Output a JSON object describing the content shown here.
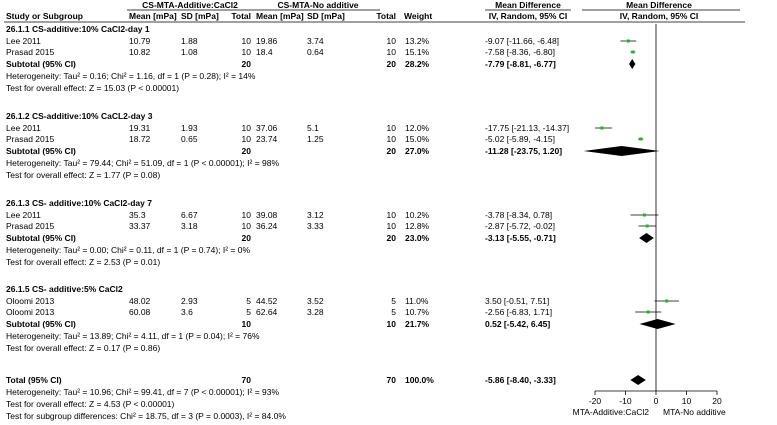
{
  "header": {
    "exp_group": "CS-MTA-Additive:CaCl2",
    "ctl_group": "CS-MTA-No additive",
    "md_heading_1": "Mean Difference",
    "md_heading_2": "Mean Difference",
    "study_or_subgroup": "Study or Subgroup",
    "mean_exp": "Mean [mPa]",
    "sd_exp": "SD [mPa]",
    "total_exp": "Total",
    "mean_ctl": "Mean [mPa]",
    "sd_ctl": "SD [mPa]",
    "total_ctl": "Total",
    "weight": "Weight",
    "ci_col_1": "IV, Random, 95% CI",
    "ci_col_2": "IV, Random, 95% CI"
  },
  "chart_data": {
    "type": "forest",
    "x_axis": {
      "ticks": [
        -20,
        -10,
        0,
        10,
        20
      ],
      "tick_labels": [
        "-20",
        "-10",
        "0",
        "10",
        "20"
      ],
      "range": [
        -20,
        20
      ],
      "left_label": "MTA-Additive:CaCl2",
      "right_label": "MTA-No additive"
    },
    "subgroups": [
      {
        "title": "26.1.1 CS-additive:10% CaCl2-day 1",
        "studies": [
          {
            "name": "Lee 2011",
            "mean_exp": "10.79",
            "sd_exp": "1.88",
            "n_exp": "10",
            "mean_ctl": "19.86",
            "sd_ctl": "3.74",
            "n_ctl": "10",
            "weight": "13.2%",
            "ci_text": "-9.07 [-11.66, -6.48]",
            "md": -9.07,
            "lo": -11.66,
            "hi": -6.48
          },
          {
            "name": "Prasad 2015",
            "mean_exp": "10.82",
            "sd_exp": "1.08",
            "n_exp": "10",
            "mean_ctl": "18.4",
            "sd_ctl": "0.64",
            "n_ctl": "10",
            "weight": "15.1%",
            "ci_text": "-7.58 [-8.36, -6.80]",
            "md": -7.58,
            "lo": -8.36,
            "hi": -6.8
          }
        ],
        "subtotal": {
          "label": "Subtotal (95% CI)",
          "n_exp": "20",
          "n_ctl": "20",
          "weight": "28.2%",
          "ci_text": "-7.79 [-8.81, -6.77]",
          "md": -7.79,
          "lo": -8.81,
          "hi": -6.77
        },
        "heterogeneity": "Heterogeneity: Tau² = 0.16; Chi² = 1.16, df = 1 (P = 0.28); I² = 14%",
        "overall_test": "Test for overall effect: Z = 15.03 (P < 0.00001)"
      },
      {
        "title": "26.1.2 CS-additive:10% CaCL2-day 3",
        "studies": [
          {
            "name": "Lee 2011",
            "mean_exp": "19.31",
            "sd_exp": "1.93",
            "n_exp": "10",
            "mean_ctl": "37.06",
            "sd_ctl": "5.1",
            "n_ctl": "10",
            "weight": "12.0%",
            "ci_text": "-17.75 [-21.13, -14.37]",
            "md": -17.75,
            "lo": -21.13,
            "hi": -14.37
          },
          {
            "name": "Prasad 2015",
            "mean_exp": "18.72",
            "sd_exp": "0.65",
            "n_exp": "10",
            "mean_ctl": "23.74",
            "sd_ctl": "1.25",
            "n_ctl": "10",
            "weight": "15.0%",
            "ci_text": "-5.02 [-5.89, -4.15]",
            "md": -5.02,
            "lo": -5.89,
            "hi": -4.15
          }
        ],
        "subtotal": {
          "label": "Subtotal (95% CI)",
          "n_exp": "20",
          "n_ctl": "20",
          "weight": "27.0%",
          "ci_text": "-11.28 [-23.75, 1.20]",
          "md": -11.28,
          "lo": -23.75,
          "hi": 1.2
        },
        "heterogeneity": "Heterogeneity: Tau² = 79.44; Chi² = 51.09, df = 1 (P < 0.00001); I² = 98%",
        "overall_test": "Test for overall effect: Z = 1.77 (P = 0.08)"
      },
      {
        "title": "26.1.3 CS- additive:10% CaCl2-day 7",
        "studies": [
          {
            "name": "Lee 2011",
            "mean_exp": "35.3",
            "sd_exp": "6.67",
            "n_exp": "10",
            "mean_ctl": "39.08",
            "sd_ctl": "3.12",
            "n_ctl": "10",
            "weight": "10.2%",
            "ci_text": "-3.78 [-8.34, 0.78]",
            "md": -3.78,
            "lo": -8.34,
            "hi": 0.78
          },
          {
            "name": "Prasad 2015",
            "mean_exp": "33.37",
            "sd_exp": "3.18",
            "n_exp": "10",
            "mean_ctl": "36.24",
            "sd_ctl": "3.33",
            "n_ctl": "10",
            "weight": "12.8%",
            "ci_text": "-2.87 [-5.72, -0.02]",
            "md": -2.87,
            "lo": -5.72,
            "hi": -0.02
          }
        ],
        "subtotal": {
          "label": "Subtotal (95% CI)",
          "n_exp": "20",
          "n_ctl": "20",
          "weight": "23.0%",
          "ci_text": "-3.13 [-5.55, -0.71]",
          "md": -3.13,
          "lo": -5.55,
          "hi": -0.71
        },
        "heterogeneity": "Heterogeneity: Tau² = 0.00; Chi² = 0.11, df = 1 (P = 0.74); I² = 0%",
        "overall_test": "Test for overall effect: Z = 2.53 (P = 0.01)"
      },
      {
        "title": "26.1.5 CS- additive:5% CaCl2",
        "studies": [
          {
            "name": "Oloomi 2013",
            "mean_exp": "48.02",
            "sd_exp": "2.93",
            "n_exp": "5",
            "mean_ctl": "44.52",
            "sd_ctl": "3.52",
            "n_ctl": "5",
            "weight": "11.0%",
            "ci_text": "3.50 [-0.51, 7.51]",
            "md": 3.5,
            "lo": -0.51,
            "hi": 7.51
          },
          {
            "name": "Oloomi 2013",
            "mean_exp": "60.08",
            "sd_exp": "3.6",
            "n_exp": "5",
            "mean_ctl": "62.64",
            "sd_ctl": "3.28",
            "n_ctl": "5",
            "weight": "10.7%",
            "ci_text": "-2.56 [-6.83, 1.71]",
            "md": -2.56,
            "lo": -6.83,
            "hi": 1.71
          }
        ],
        "subtotal": {
          "label": "Subtotal (95% CI)",
          "n_exp": "10",
          "n_ctl": "10",
          "weight": "21.7%",
          "ci_text": "0.52 [-5.42, 6.45]",
          "md": 0.52,
          "lo": -5.42,
          "hi": 6.45
        },
        "heterogeneity": "Heterogeneity: Tau² = 13.89; Chi² = 4.11, df = 1 (P = 0.04); I² = 76%",
        "overall_test": "Test for overall effect: Z = 0.17 (P = 0.86)"
      }
    ],
    "total": {
      "label": "Total (95% CI)",
      "n_exp": "70",
      "n_ctl": "70",
      "weight": "100.0%",
      "ci_text": "-5.86 [-8.40, -3.33]",
      "md": -5.86,
      "lo": -8.4,
      "hi": -3.33,
      "heterogeneity": "Heterogeneity: Tau² = 10.96; Chi² = 99.41, df = 7 (P < 0.00001); I² = 93%",
      "overall_test": "Test for overall effect: Z = 4.53 (P < 0.00001)",
      "subgroup_test": "Test for subgroup differences: Chi² = 18.75, df = 3 (P = 0.0003), I² = 84.0%"
    },
    "colors": {
      "study_marker": "#22b522",
      "diamond": "#000000",
      "line": "#000000"
    }
  }
}
